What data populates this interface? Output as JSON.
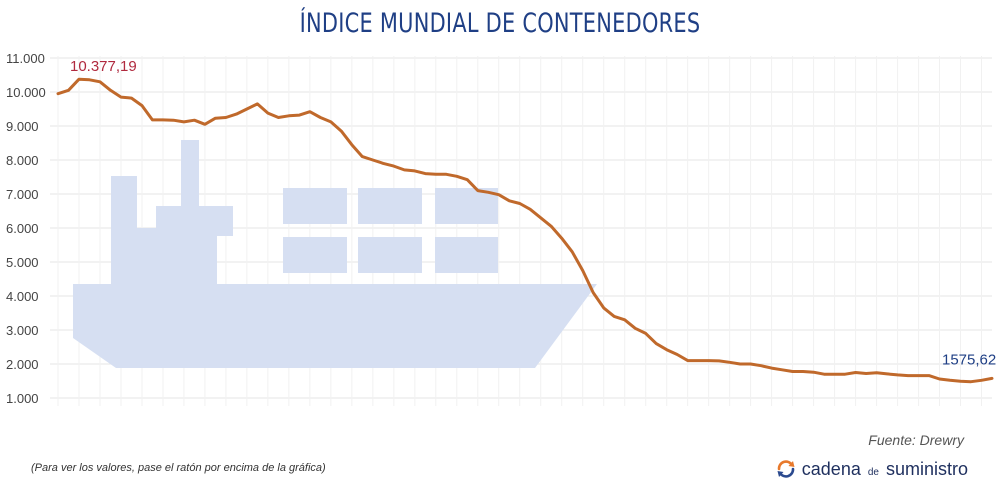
{
  "header": {
    "title": "ÍNDICE MUNDIAL DE CONTENEDORES"
  },
  "footer": {
    "source": "Fuente: Drewry",
    "note": "(Para ver los valores, pase el ratón por encima de la gráfica)",
    "brand_part1": "cadena",
    "brand_part2": "de",
    "brand_part3": "suministro"
  },
  "colors": {
    "line": "#c0692b",
    "grid": "#e6e6e6",
    "ship": "#d6dff2",
    "title": "#1f3f85",
    "annotation_max": "#b0293e",
    "annotation_last": "#1f3f85",
    "brand_icon_orange": "#e8792c",
    "brand_icon_blue": "#2b4a8f"
  },
  "chart_data": {
    "type": "line",
    "title": "ÍNDICE MUNDIAL DE CONTENEDORES",
    "ylim": [
      1000,
      11000
    ],
    "y_ticks": [
      {
        "value": 1000,
        "label": "1.000"
      },
      {
        "value": 2000,
        "label": "2.000"
      },
      {
        "value": 3000,
        "label": "3.000"
      },
      {
        "value": 4000,
        "label": "4.000"
      },
      {
        "value": 5000,
        "label": "5.000"
      },
      {
        "value": 6000,
        "label": "6.000"
      },
      {
        "value": 7000,
        "label": "7.000"
      },
      {
        "value": 8000,
        "label": "8.000"
      },
      {
        "value": 9000,
        "label": "9.000"
      },
      {
        "value": 10000,
        "label": "10.000"
      },
      {
        "value": 11000,
        "label": "11.000"
      }
    ],
    "grid": true,
    "x_axis_labels": false,
    "series": [
      {
        "values": [
          9950,
          10050,
          10377.19,
          10360,
          10300,
          10050,
          9850,
          9820,
          9600,
          9180,
          9180,
          9170,
          9120,
          9170,
          9050,
          9230,
          9250,
          9350,
          9500,
          9650,
          9380,
          9250,
          9300,
          9320,
          9420,
          9250,
          9120,
          8850,
          8450,
          8100,
          8000,
          7900,
          7820,
          7710,
          7680,
          7600,
          7580,
          7580,
          7520,
          7420,
          7100,
          7050,
          6980,
          6800,
          6720,
          6550,
          6300,
          6050,
          5700,
          5300,
          4750,
          4100,
          3650,
          3400,
          3300,
          3050,
          2900,
          2600,
          2420,
          2280,
          2100,
          2100,
          2100,
          2090,
          2050,
          2000,
          2000,
          1950,
          1880,
          1830,
          1780,
          1780,
          1760,
          1700,
          1700,
          1700,
          1750,
          1720,
          1740,
          1710,
          1680,
          1660,
          1660,
          1660,
          1560,
          1520,
          1490,
          1480,
          1520,
          1575.62
        ]
      }
    ],
    "annotations": [
      {
        "label": "10.377,19",
        "index": 2
      },
      {
        "label": "1575,62",
        "index": 89
      }
    ]
  }
}
